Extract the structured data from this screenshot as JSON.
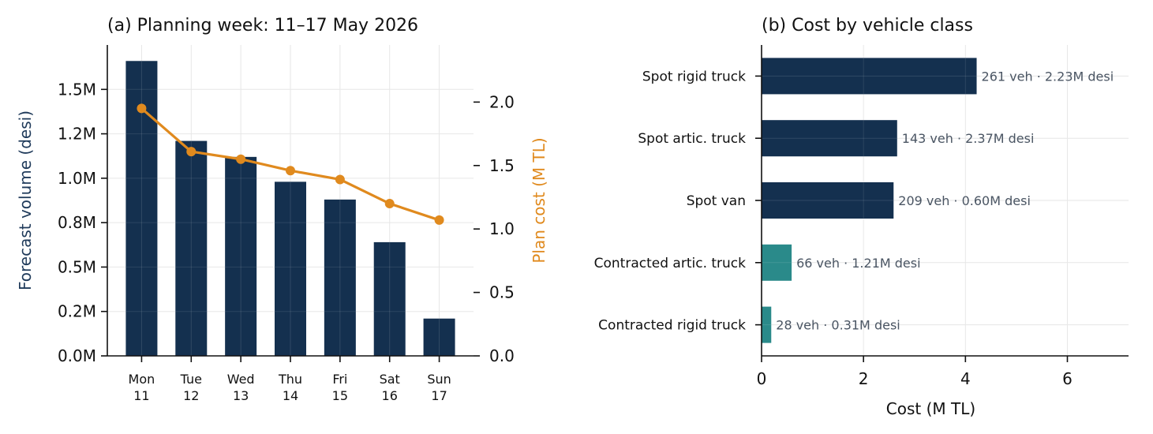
{
  "colors": {
    "navy": "#14304f",
    "orange": "#e08a1e",
    "teal": "#2a8a8a",
    "ylabel_left": "#1f3a5a",
    "annot": "#4a5563",
    "grid": "#e6e6e6"
  },
  "chart_data": [
    {
      "type": "bar",
      "title": "(a) Planning week: 11–17 May 2026",
      "categories": [
        "Mon\n11",
        "Tue\n12",
        "Wed\n13",
        "Thu\n14",
        "Fri\n15",
        "Sat\n16",
        "Sun\n17"
      ],
      "category_lines": [
        [
          "Mon",
          "11"
        ],
        [
          "Tue",
          "12"
        ],
        [
          "Wed",
          "13"
        ],
        [
          "Thu",
          "14"
        ],
        [
          "Fri",
          "15"
        ],
        [
          "Sat",
          "16"
        ],
        [
          "Sun",
          "17"
        ]
      ],
      "series": [
        {
          "name": "Forecast volume (desi)",
          "kind": "bar",
          "axis": "left",
          "color": "#14304f",
          "values": [
            1660000,
            1210000,
            1120000,
            980000,
            880000,
            640000,
            210000
          ]
        },
        {
          "name": "Plan cost (M TL)",
          "kind": "line",
          "axis": "right",
          "color": "#e08a1e",
          "values": [
            1.95,
            1.61,
            1.55,
            1.46,
            1.39,
            1.2,
            1.07
          ]
        }
      ],
      "ylabel": "Forecast volume (desi)",
      "ylabel_right": "Plan cost (M TL)",
      "ylim": [
        0,
        1750000
      ],
      "ylim_right": [
        0,
        2.45
      ],
      "yticks": [
        0,
        250000,
        500000,
        750000,
        1000000,
        1250000,
        1500000
      ],
      "yticklabels": [
        "0.0M",
        "0.2M",
        "0.5M",
        "0.8M",
        "1.0M",
        "1.2M",
        "1.5M"
      ],
      "yticks_right": [
        0,
        0.5,
        1.0,
        1.5,
        2.0
      ],
      "yticklabels_right": [
        "0.0",
        "0.5",
        "1.0",
        "1.5",
        "2.0"
      ],
      "grid": true
    },
    {
      "type": "bar",
      "orientation": "horizontal",
      "title": "(b) Cost by vehicle class",
      "categories": [
        "Spot rigid truck",
        "Spot artic. truck",
        "Spot van",
        "Contracted artic. truck",
        "Contracted rigid truck"
      ],
      "values": [
        4.22,
        2.66,
        2.59,
        0.59,
        0.19
      ],
      "bar_colors": [
        "#14304f",
        "#14304f",
        "#14304f",
        "#2a8a8a",
        "#2a8a8a"
      ],
      "annotations": [
        "261 veh · 2.23M desi",
        "143 veh · 2.37M desi",
        "209 veh · 0.60M desi",
        "66 veh · 1.21M desi",
        "28 veh · 0.31M desi"
      ],
      "xlabel": "Cost (M TL)",
      "xlim": [
        0,
        7.2
      ],
      "xticks": [
        0,
        2,
        4,
        6
      ],
      "xticklabels": [
        "0",
        "2",
        "4",
        "6"
      ],
      "grid": true
    }
  ]
}
